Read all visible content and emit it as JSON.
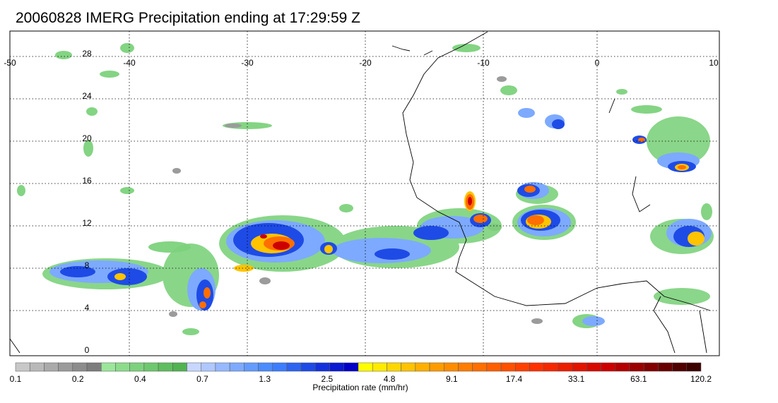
{
  "title": "20060828 IMERG Precipitation ending at 17:29:59 Z",
  "map": {
    "lon_ticks": [
      "-50",
      "-40",
      "-30",
      "-20",
      "-10",
      "0",
      "10"
    ],
    "lat_ticks": [
      "0",
      "4",
      "8",
      "12",
      "16",
      "20",
      "24",
      "28"
    ]
  },
  "colorbar": {
    "caption": "Precipitation rate (mm/hr)",
    "tick_labels": [
      "0.1",
      "0.2",
      "0.4",
      "0.7",
      "1.3",
      "2.5",
      "4.8",
      "9.1",
      "17.4",
      "33.1",
      "63.1",
      "120.2"
    ],
    "colors": [
      "#c8c8c8",
      "#b9b9b9",
      "#aaaaaa",
      "#9b9b9b",
      "#8c8c8c",
      "#7d7d7d",
      "#9be69b",
      "#8cdc8c",
      "#7dd27d",
      "#6ec86e",
      "#5fbe5f",
      "#50b450",
      "#c8d7ff",
      "#afc8ff",
      "#96b9ff",
      "#7daaff",
      "#649bff",
      "#4b8cff",
      "#3c7dff",
      "#2d64f0",
      "#1e4be6",
      "#1432dc",
      "#0a19d2",
      "#0000c8",
      "#ffff00",
      "#ffeb00",
      "#ffd700",
      "#ffc300",
      "#ffaf00",
      "#ff9b00",
      "#ff8c00",
      "#ff7d00",
      "#ff6e00",
      "#ff5f00",
      "#ff5000",
      "#ff4100",
      "#ff3200",
      "#f52800",
      "#eb1e00",
      "#e11400",
      "#d70a00",
      "#cd0000",
      "#b40000",
      "#9b0000",
      "#820000",
      "#690000",
      "#500000",
      "#3c0000"
    ]
  }
}
